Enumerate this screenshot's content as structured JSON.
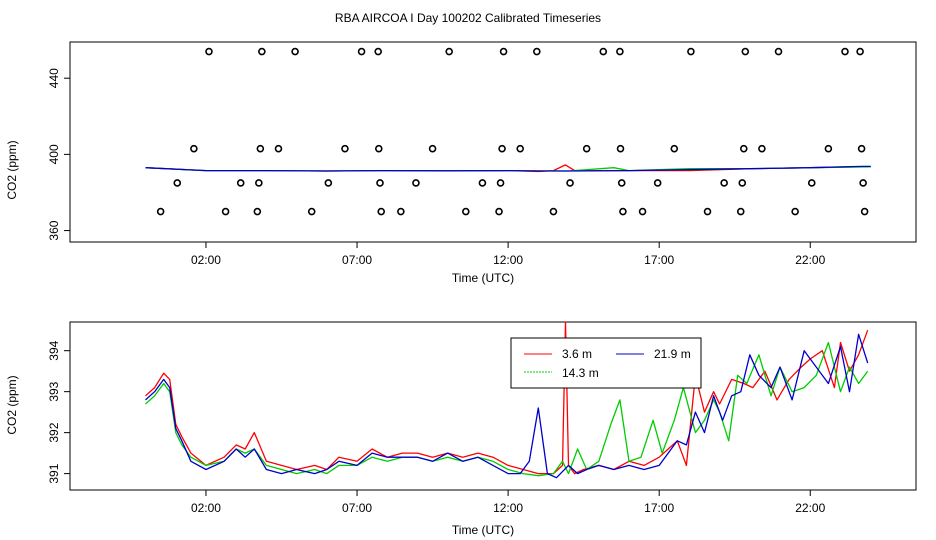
{
  "title": "RBA AIRCOA I  Day 100202  Calibrated Timeseries",
  "chart_data": [
    {
      "type": "scatter",
      "xlabel": "Time (UTC)",
      "ylabel": "CO2 (ppm)",
      "x_ticks": [
        2,
        7,
        12,
        17,
        22
      ],
      "x_tick_labels": [
        "02:00",
        "07:00",
        "12:00",
        "17:00",
        "22:00"
      ],
      "xlim": [
        -2.5,
        25.5
      ],
      "y_ticks": [
        360,
        400,
        440
      ],
      "y_tick_labels": [
        "360",
        "400",
        "440"
      ],
      "ylim": [
        354,
        459
      ],
      "circle_points": [
        {
          "x": 0.5,
          "y": 370
        },
        {
          "x": 1.05,
          "y": 385
        },
        {
          "x": 1.6,
          "y": 403
        },
        {
          "x": 2.1,
          "y": 454
        },
        {
          "x": 2.65,
          "y": 370
        },
        {
          "x": 3.15,
          "y": 385
        },
        {
          "x": 3.7,
          "y": 370
        },
        {
          "x": 3.75,
          "y": 385
        },
        {
          "x": 3.8,
          "y": 403
        },
        {
          "x": 3.85,
          "y": 454
        },
        {
          "x": 4.4,
          "y": 403
        },
        {
          "x": 4.95,
          "y": 454
        },
        {
          "x": 5.5,
          "y": 370
        },
        {
          "x": 6.05,
          "y": 385
        },
        {
          "x": 6.6,
          "y": 403
        },
        {
          "x": 7.15,
          "y": 454
        },
        {
          "x": 7.7,
          "y": 454
        },
        {
          "x": 7.72,
          "y": 403
        },
        {
          "x": 7.76,
          "y": 385
        },
        {
          "x": 7.8,
          "y": 370
        },
        {
          "x": 8.45,
          "y": 370
        },
        {
          "x": 8.95,
          "y": 385
        },
        {
          "x": 9.5,
          "y": 403
        },
        {
          "x": 10.05,
          "y": 454
        },
        {
          "x": 10.6,
          "y": 370
        },
        {
          "x": 11.15,
          "y": 385
        },
        {
          "x": 11.7,
          "y": 370
        },
        {
          "x": 11.75,
          "y": 385
        },
        {
          "x": 11.8,
          "y": 403
        },
        {
          "x": 11.85,
          "y": 454
        },
        {
          "x": 12.4,
          "y": 403
        },
        {
          "x": 12.95,
          "y": 454
        },
        {
          "x": 13.5,
          "y": 370
        },
        {
          "x": 14.05,
          "y": 385
        },
        {
          "x": 14.6,
          "y": 403
        },
        {
          "x": 15.15,
          "y": 454
        },
        {
          "x": 15.7,
          "y": 454
        },
        {
          "x": 15.72,
          "y": 403
        },
        {
          "x": 15.76,
          "y": 385
        },
        {
          "x": 15.8,
          "y": 370
        },
        {
          "x": 16.45,
          "y": 370
        },
        {
          "x": 16.95,
          "y": 385
        },
        {
          "x": 17.5,
          "y": 403
        },
        {
          "x": 18.05,
          "y": 454
        },
        {
          "x": 18.6,
          "y": 370
        },
        {
          "x": 19.15,
          "y": 385
        },
        {
          "x": 19.7,
          "y": 370
        },
        {
          "x": 19.75,
          "y": 385
        },
        {
          "x": 19.8,
          "y": 403
        },
        {
          "x": 19.85,
          "y": 454
        },
        {
          "x": 20.4,
          "y": 403
        },
        {
          "x": 20.95,
          "y": 454
        },
        {
          "x": 21.5,
          "y": 370
        },
        {
          "x": 22.05,
          "y": 385
        },
        {
          "x": 22.6,
          "y": 403
        },
        {
          "x": 23.15,
          "y": 454
        },
        {
          "x": 23.65,
          "y": 454
        },
        {
          "x": 23.7,
          "y": 403
        },
        {
          "x": 23.75,
          "y": 385
        },
        {
          "x": 23.8,
          "y": 370
        }
      ],
      "series": [
        {
          "color": "#ff0000",
          "x": [
            0,
            2,
            4,
            6,
            8,
            10,
            12,
            13,
            13.5,
            13.9,
            14.2,
            16,
            18,
            20,
            22,
            23.4,
            24
          ],
          "y": [
            393,
            391.5,
            391.5,
            391.3,
            391.5,
            391.4,
            391.5,
            391,
            391.5,
            394.5,
            391.5,
            391.5,
            391.5,
            392.5,
            393,
            393.5,
            393.5
          ]
        },
        {
          "color": "#00cc00",
          "x": [
            0,
            2,
            4,
            6,
            8,
            10,
            12,
            14,
            15.5,
            16,
            18,
            20,
            22,
            24
          ],
          "y": [
            393,
            391.5,
            391.5,
            391.3,
            391.5,
            391.4,
            391.5,
            391.3,
            393,
            391.5,
            392.5,
            392.5,
            393,
            393.5
          ]
        },
        {
          "color": "#0000cc",
          "x": [
            0,
            2,
            4,
            6,
            8,
            10,
            12,
            13,
            14,
            16,
            18,
            20,
            22,
            23.7,
            24
          ],
          "y": [
            393,
            391.5,
            391.5,
            391.3,
            391.5,
            391.4,
            391.5,
            391.3,
            391.3,
            391.5,
            392,
            392.5,
            393,
            393.7,
            393.7
          ]
        }
      ]
    },
    {
      "type": "line",
      "xlabel": "Time (UTC)",
      "ylabel": "CO2 (ppm)",
      "x_ticks": [
        2,
        7,
        12,
        17,
        22
      ],
      "x_tick_labels": [
        "02:00",
        "07:00",
        "12:00",
        "17:00",
        "22:00"
      ],
      "xlim": [
        -2.5,
        25.5
      ],
      "y_ticks": [
        391,
        392,
        393,
        394
      ],
      "y_tick_labels": [
        "391",
        "392",
        "393",
        "394"
      ],
      "ylim": [
        390.6,
        394.7
      ],
      "legend": [
        {
          "label": "3.6 m",
          "color": "#ff0000"
        },
        {
          "label": "14.3 m",
          "color": "#00cc00"
        },
        {
          "label": "21.9 m",
          "color": "#0000cc"
        }
      ],
      "series": [
        {
          "name": "3.6 m",
          "color": "#ff0000",
          "x": [
            0,
            0.3,
            0.6,
            0.8,
            1.0,
            1.2,
            1.5,
            2.0,
            2.6,
            3.0,
            3.3,
            3.6,
            4.0,
            4.5,
            5.0,
            5.6,
            6.0,
            6.4,
            7.0,
            7.5,
            8.0,
            8.5,
            9.0,
            9.5,
            10.0,
            10.5,
            11.0,
            11.5,
            12.0,
            12.5,
            13.0,
            13.5,
            13.8,
            13.9,
            14.0,
            14.2,
            14.5,
            15.0,
            15.5,
            16.0,
            16.5,
            17.0,
            17.3,
            17.6,
            17.9,
            18.2,
            18.5,
            18.8,
            19.0,
            19.4,
            19.8,
            20.1,
            20.5,
            20.9,
            21.3,
            21.7,
            22.0,
            22.4,
            22.8,
            23.0,
            23.3,
            23.6,
            23.9
          ],
          "y": [
            392.9,
            393.1,
            393.45,
            393.3,
            392.2,
            391.9,
            391.5,
            391.2,
            391.4,
            391.7,
            391.6,
            392.0,
            391.3,
            391.2,
            391.1,
            391.2,
            391.1,
            391.4,
            391.3,
            391.6,
            391.4,
            391.5,
            391.5,
            391.4,
            391.5,
            391.4,
            391.5,
            391.4,
            391.2,
            391.1,
            391.0,
            391.0,
            391.2,
            394.7,
            391.2,
            391.0,
            391.1,
            391.2,
            391.1,
            391.3,
            391.2,
            391.4,
            391.6,
            391.8,
            391.2,
            393.4,
            392.5,
            393.0,
            392.7,
            393.3,
            393.2,
            393.1,
            393.5,
            392.8,
            393.3,
            393.6,
            393.8,
            394.0,
            393.1,
            394.2,
            393.5,
            393.9,
            394.5
          ]
        },
        {
          "name": "14.3 m",
          "color": "#00cc00",
          "x": [
            0,
            0.3,
            0.6,
            0.8,
            1.0,
            1.2,
            1.5,
            2.0,
            2.6,
            3.0,
            3.3,
            3.6,
            4.0,
            4.5,
            5.0,
            5.6,
            6.0,
            6.4,
            7.0,
            7.5,
            8.0,
            8.5,
            9.0,
            9.5,
            10.0,
            10.5,
            11.0,
            11.5,
            12.0,
            12.5,
            13.0,
            13.5,
            13.8,
            14.0,
            14.3,
            14.6,
            15.0,
            15.4,
            15.7,
            16.0,
            16.4,
            16.8,
            17.1,
            17.5,
            17.8,
            18.2,
            18.5,
            18.8,
            19.0,
            19.3,
            19.6,
            19.9,
            20.3,
            20.7,
            21.0,
            21.4,
            21.8,
            22.2,
            22.6,
            23.0,
            23.3,
            23.6,
            23.9
          ],
          "y": [
            392.7,
            392.9,
            393.2,
            393.0,
            392.0,
            391.7,
            391.4,
            391.2,
            391.3,
            391.6,
            391.5,
            391.6,
            391.2,
            391.1,
            391.0,
            391.1,
            391.0,
            391.2,
            391.2,
            391.4,
            391.3,
            391.4,
            391.4,
            391.3,
            391.4,
            391.3,
            391.4,
            391.3,
            391.1,
            391.0,
            390.95,
            391.0,
            391.3,
            391.0,
            391.6,
            391.1,
            391.3,
            392.2,
            392.8,
            391.3,
            391.4,
            392.3,
            391.5,
            392.3,
            393.1,
            392.0,
            392.3,
            392.8,
            392.5,
            391.8,
            393.4,
            393.2,
            393.9,
            392.9,
            393.6,
            393.0,
            393.1,
            393.4,
            394.2,
            393.0,
            393.6,
            393.2,
            393.5
          ]
        },
        {
          "name": "21.9 m",
          "color": "#0000cc",
          "x": [
            0,
            0.3,
            0.6,
            0.8,
            1.0,
            1.2,
            1.5,
            2.0,
            2.6,
            3.0,
            3.3,
            3.6,
            4.0,
            4.5,
            5.0,
            5.6,
            6.0,
            6.4,
            7.0,
            7.5,
            8.0,
            8.5,
            9.0,
            9.5,
            10.0,
            10.5,
            11.0,
            11.5,
            12.0,
            12.4,
            12.7,
            13.0,
            13.3,
            13.6,
            14.0,
            14.3,
            14.6,
            15.0,
            15.5,
            16.0,
            16.5,
            17.0,
            17.3,
            17.6,
            17.9,
            18.2,
            18.5,
            18.8,
            19.1,
            19.4,
            19.7,
            20.0,
            20.3,
            20.7,
            21.0,
            21.4,
            21.8,
            22.2,
            22.6,
            23.0,
            23.3,
            23.6,
            23.9
          ],
          "y": [
            392.8,
            393.0,
            393.3,
            393.1,
            392.1,
            391.8,
            391.3,
            391.1,
            391.3,
            391.6,
            391.4,
            391.6,
            391.1,
            391.0,
            391.1,
            391.0,
            391.1,
            391.3,
            391.2,
            391.5,
            391.4,
            391.4,
            391.4,
            391.3,
            391.5,
            391.3,
            391.4,
            391.2,
            391.0,
            391.0,
            391.3,
            392.6,
            391.0,
            390.9,
            391.2,
            391.0,
            391.1,
            391.2,
            391.1,
            391.2,
            391.1,
            391.2,
            391.5,
            391.8,
            391.7,
            392.5,
            392.0,
            392.9,
            392.3,
            392.9,
            393.0,
            393.9,
            393.4,
            393.1,
            393.6,
            392.8,
            394.0,
            393.6,
            393.2,
            394.1,
            393.0,
            394.4,
            393.7
          ]
        }
      ]
    }
  ]
}
